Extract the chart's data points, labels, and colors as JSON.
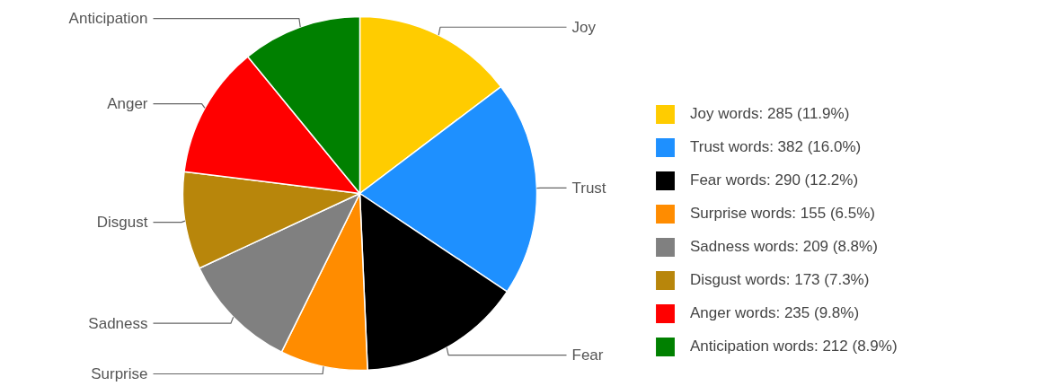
{
  "chart_data": {
    "type": "pie",
    "categories": [
      "Joy words: 285 (11.9%)",
      "Trust words: 382 (16.0%)",
      "Fear words: 290 (12.2%)",
      "Surprise words: 155 (6.5%)",
      "Sadness words: 209 (8.8%)",
      "Disgust words: 173 (7.3%)",
      "Anger words: 235 (9.8%)",
      "Anticipation words: 212 (8.9%)"
    ],
    "values": [
      285,
      382,
      290,
      155,
      209,
      173,
      235,
      212
    ],
    "colors": [
      "#ffcc00",
      "#1e90ff",
      "#000000",
      "#ff8c00",
      "#808080",
      "#b8860b",
      "#ff0000",
      "#008000"
    ],
    "annotations": [
      "Joy",
      "Trust",
      "Fear",
      "Surprise",
      "Sadness",
      "Disgust",
      "Anger",
      "Anticipation"
    ],
    "legend": "right"
  }
}
